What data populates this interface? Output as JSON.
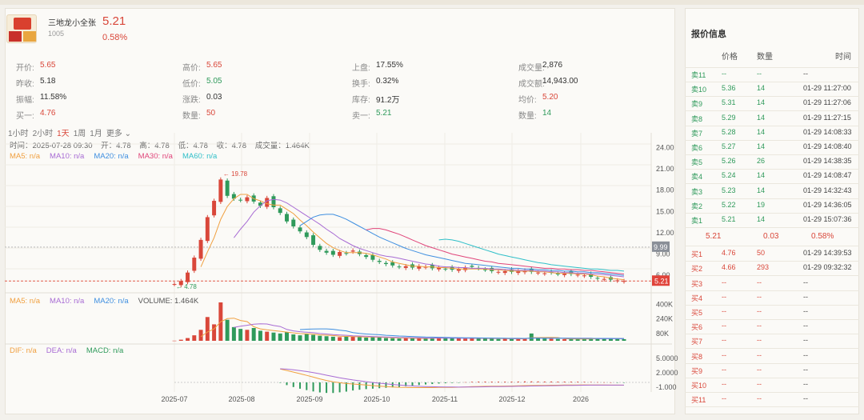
{
  "stock": {
    "name": "三地龙小全张",
    "code": "1005",
    "price": "5.21",
    "change_pct": "0.58%"
  },
  "stats": [
    {
      "label": "开价:",
      "value": "5.65",
      "color": "red"
    },
    {
      "label": "昨收:",
      "value": "5.18",
      "color": "dark"
    },
    {
      "label": "振幅:",
      "value": "11.58%",
      "color": "dark"
    },
    {
      "label": "买一:",
      "value": "4.76",
      "color": "red"
    },
    {
      "label": "高价:",
      "value": "5.65",
      "color": "red"
    },
    {
      "label": "低价:",
      "value": "5.05",
      "color": "green"
    },
    {
      "label": "涨跌:",
      "value": "0.03",
      "color": "dark"
    },
    {
      "label": "数量:",
      "value": "50",
      "color": "red"
    },
    {
      "label": "上盘:",
      "value": "17.55%",
      "color": "dark"
    },
    {
      "label": "换手:",
      "value": "0.32%",
      "color": "dark"
    },
    {
      "label": "库存:",
      "value": "91.2万",
      "color": "dark"
    },
    {
      "label": "卖一:",
      "value": "5.21",
      "color": "green"
    },
    {
      "label": "成交量:",
      "value": "2,876",
      "color": "dark"
    },
    {
      "label": "成交额:",
      "value": "14,943.00",
      "color": "dark"
    },
    {
      "label": "均价:",
      "value": "5.20",
      "color": "red"
    },
    {
      "label": "数量:",
      "value": "14",
      "color": "green"
    }
  ],
  "periods": [
    "1小时",
    "2小时",
    "1天",
    "1周",
    "1月",
    "更多 ⌄"
  ],
  "active_period": "1天",
  "kline_info": {
    "time": "时间：2025-07-28 09:30",
    "open": "开：4.78",
    "high": "高：4.78",
    "low": "低：4.78",
    "close": "收：4.78",
    "volume": "成交量：1.464K"
  },
  "ma_legend": [
    {
      "label": "MA5: n/a",
      "color": "#f0a040"
    },
    {
      "label": "MA10: n/a",
      "color": "#a86cd4"
    },
    {
      "label": "MA20: n/a",
      "color": "#3f8fe0"
    },
    {
      "label": "MA30: n/a",
      "color": "#e0457a"
    },
    {
      "label": "MA60: n/a",
      "color": "#2fbfc8"
    }
  ],
  "vol_legend": [
    {
      "label": "MA5: n/a",
      "color": "#f0a040"
    },
    {
      "label": "MA10: n/a",
      "color": "#a86cd4"
    },
    {
      "label": "MA20: n/a",
      "color": "#3f8fe0"
    },
    {
      "label": "VOLUME: 1.464K",
      "color": "#555555"
    }
  ],
  "macd_legend": [
    {
      "label": "DIF: n/a",
      "color": "#f0a040"
    },
    {
      "label": "DEA: n/a",
      "color": "#a86cd4"
    },
    {
      "label": "MACD: n/a",
      "color": "#2f9a5b"
    }
  ],
  "axes": {
    "price_ticks": [
      "24.00",
      "21.00",
      "18.00",
      "15.00",
      "12.00",
      "9.00",
      "6.00"
    ],
    "price_marker": "9.99",
    "last_price_marker": "5.21",
    "high_label": "19.78",
    "low_label": "4.78",
    "volume_ticks": [
      "400K",
      "240K",
      "80K"
    ],
    "macd_ticks": [
      "5.0000",
      "2.0000",
      "-1.000"
    ],
    "x_ticks": [
      "2025-07",
      "2025-08",
      "2025-09",
      "2025-10",
      "2025-11",
      "2025-12",
      "2026"
    ]
  },
  "chart_data": {
    "type": "candlestick",
    "note_colors": {
      "up": "#d9473a",
      "down": "#2f9a5b"
    },
    "ylim": [
      4,
      24.5
    ],
    "x_range": [
      "2025-07-28",
      "2026-01-29"
    ],
    "high_point": 19.78,
    "low_point": 4.78,
    "last": 5.21,
    "close_series": [
      4.78,
      5.2,
      6.4,
      8.5,
      11.0,
      14.2,
      16.5,
      19.5,
      17.2,
      16.8,
      16.6,
      17.0,
      16.4,
      15.8,
      16.9,
      15.6,
      14.8,
      13.6,
      12.9,
      12.2,
      11.4,
      10.3,
      9.6,
      9.2,
      8.9,
      9.3,
      9.1,
      9.5,
      9.0,
      8.6,
      8.2,
      7.9,
      7.6,
      7.4,
      7.2,
      7.3,
      7.1,
      7.3,
      7.2,
      7.0,
      7.1,
      6.9,
      6.8,
      6.9,
      7.1,
      7.2,
      7.0,
      6.8,
      6.6,
      6.5,
      6.6,
      6.5,
      6.6,
      6.7,
      6.5,
      6.4,
      6.3,
      6.4,
      6.2,
      6.3,
      6.2,
      6.1,
      6.0,
      5.8,
      5.6,
      5.5,
      5.4,
      5.3,
      5.21
    ],
    "ma5": [
      null,
      null,
      null,
      null,
      7.2,
      9.3,
      11.3,
      13.9,
      15.7,
      16.8,
      17.4,
      17.4,
      16.8,
      16.5,
      16.1,
      15.9,
      15.9,
      15.3,
      14.7,
      13.8,
      13.0,
      12.1,
      11.3,
      10.5,
      9.9,
      9.5,
      9.2,
      9.2,
      9.2,
      9.1,
      8.9,
      8.6,
      8.3,
      7.9,
      7.7,
      7.5,
      7.3,
      7.3,
      7.2,
      7.2,
      7.1,
      7.1,
      7.0,
      6.9,
      6.9,
      6.9,
      6.9,
      6.9,
      6.8,
      6.8,
      6.7,
      6.6,
      6.6,
      6.6,
      6.6,
      6.5,
      6.5,
      6.4,
      6.3,
      6.3,
      6.3,
      6.2,
      6.2,
      6.1,
      5.9,
      5.8,
      5.6,
      5.5,
      5.4
    ],
    "ma10": [
      null,
      null,
      null,
      null,
      null,
      null,
      null,
      null,
      null,
      11.3,
      12.5,
      13.6,
      14.9,
      15.8,
      16.5,
      16.7,
      16.6,
      16.2,
      15.6,
      15.0,
      14.4,
      13.8,
      13.2,
      12.5,
      11.9,
      11.2,
      10.7,
      10.2,
      9.8,
      9.5,
      9.2,
      8.9,
      8.7,
      8.6,
      8.4,
      8.2,
      8.0,
      7.8,
      7.6,
      7.5,
      7.3,
      7.2,
      7.2,
      7.1,
      7.1,
      7.0,
      7.0,
      7.0,
      6.9,
      6.9,
      6.8,
      6.8,
      6.7,
      6.7,
      6.7,
      6.6,
      6.6,
      6.5,
      6.5,
      6.4,
      6.4,
      6.3,
      6.3,
      6.2,
      6.2,
      6.1,
      6.0,
      5.9,
      5.8
    ],
    "ma20": [
      null,
      null,
      null,
      null,
      null,
      null,
      null,
      null,
      null,
      null,
      null,
      null,
      null,
      null,
      null,
      null,
      null,
      null,
      null,
      13.0,
      13.6,
      14.2,
      14.5,
      14.6,
      14.6,
      14.3,
      13.9,
      13.4,
      12.9,
      12.4,
      11.9,
      11.4,
      11.0,
      10.6,
      10.2,
      9.8,
      9.5,
      9.2,
      8.9,
      8.7,
      8.5,
      8.3,
      8.1,
      7.9,
      7.7,
      7.6,
      7.5,
      7.4,
      7.3,
      7.2,
      7.1,
      7.0,
      7.0,
      6.9,
      6.9,
      6.8,
      6.8,
      6.7,
      6.7,
      6.6,
      6.6,
      6.5,
      6.5,
      6.4,
      6.4,
      6.3,
      6.2,
      6.1,
      6.0
    ],
    "ma30": [
      null,
      null,
      null,
      null,
      null,
      null,
      null,
      null,
      null,
      null,
      null,
      null,
      null,
      null,
      null,
      null,
      null,
      null,
      null,
      null,
      null,
      null,
      null,
      null,
      null,
      null,
      null,
      null,
      null,
      12.4,
      12.6,
      12.6,
      12.4,
      12.1,
      11.8,
      11.4,
      11.0,
      10.6,
      10.2,
      9.9,
      9.6,
      9.3,
      9.0,
      8.8,
      8.6,
      8.4,
      8.2,
      8.0,
      7.9,
      7.7,
      7.6,
      7.5,
      7.4,
      7.3,
      7.2,
      7.1,
      7.0,
      7.0,
      6.9,
      6.9,
      6.8,
      6.8,
      6.7,
      6.7,
      6.6,
      6.5,
      6.4,
      6.3,
      6.2
    ],
    "ma60": [
      null,
      null,
      null,
      null,
      null,
      null,
      null,
      null,
      null,
      null,
      null,
      null,
      null,
      null,
      null,
      null,
      null,
      null,
      null,
      null,
      null,
      null,
      null,
      null,
      null,
      null,
      null,
      null,
      null,
      null,
      null,
      null,
      null,
      null,
      null,
      null,
      null,
      null,
      null,
      null,
      11.0,
      11.1,
      11.0,
      10.8,
      10.5,
      10.2,
      9.9,
      9.6,
      9.3,
      9.0,
      8.8,
      8.6,
      8.4,
      8.2,
      8.0,
      7.8,
      7.7,
      7.5,
      7.4,
      7.3,
      7.2,
      7.1,
      7.0,
      6.9,
      6.9,
      6.8,
      6.7,
      6.7,
      6.6
    ],
    "volume_k": [
      1.464,
      12,
      30,
      60,
      120,
      260,
      180,
      420,
      230,
      150,
      130,
      120,
      140,
      110,
      100,
      90,
      80,
      95,
      70,
      60,
      75,
      65,
      55,
      50,
      45,
      40,
      50,
      45,
      40,
      35,
      40,
      38,
      30,
      28,
      25,
      30,
      28,
      26,
      24,
      30,
      40,
      35,
      28,
      26,
      24,
      30,
      28,
      25,
      22,
      20,
      24,
      22,
      20,
      25,
      80,
      30,
      25,
      22,
      20,
      18,
      22,
      20,
      18,
      25,
      30,
      28,
      24,
      20,
      18
    ]
  },
  "quote_panel": {
    "title": "报价信息",
    "headers": [
      "价格",
      "数量",
      "时间"
    ],
    "sells": [
      {
        "label": "卖11",
        "price": "--",
        "qty": "--",
        "time": "--"
      },
      {
        "label": "卖10",
        "price": "5.36",
        "qty": "14",
        "time": "01-29 11:27:00"
      },
      {
        "label": "卖9",
        "price": "5.31",
        "qty": "14",
        "time": "01-29 11:27:06"
      },
      {
        "label": "卖8",
        "price": "5.29",
        "qty": "14",
        "time": "01-29 11:27:15"
      },
      {
        "label": "卖7",
        "price": "5.28",
        "qty": "14",
        "time": "01-29 14:08:33"
      },
      {
        "label": "卖6",
        "price": "5.27",
        "qty": "14",
        "time": "01-29 14:08:40"
      },
      {
        "label": "卖5",
        "price": "5.26",
        "qty": "26",
        "time": "01-29 14:38:35"
      },
      {
        "label": "卖4",
        "price": "5.24",
        "qty": "14",
        "time": "01-29 14:08:47"
      },
      {
        "label": "卖3",
        "price": "5.23",
        "qty": "14",
        "time": "01-29 14:32:43"
      },
      {
        "label": "卖2",
        "price": "5.22",
        "qty": "19",
        "time": "01-29 14:36:05"
      },
      {
        "label": "卖1",
        "price": "5.21",
        "qty": "14",
        "time": "01-29 15:07:36"
      }
    ],
    "mid": {
      "price": "5.21",
      "change": "0.03",
      "pct": "0.58%"
    },
    "buys": [
      {
        "label": "买1",
        "price": "4.76",
        "qty": "50",
        "time": "01-29 14:39:53"
      },
      {
        "label": "买2",
        "price": "4.66",
        "qty": "293",
        "time": "01-29 09:32:32"
      },
      {
        "label": "买3",
        "price": "--",
        "qty": "--",
        "time": "--"
      },
      {
        "label": "买4",
        "price": "--",
        "qty": "--",
        "time": "--"
      },
      {
        "label": "买5",
        "price": "--",
        "qty": "--",
        "time": "--"
      },
      {
        "label": "买6",
        "price": "--",
        "qty": "--",
        "time": "--"
      },
      {
        "label": "买7",
        "price": "--",
        "qty": "--",
        "time": "--"
      },
      {
        "label": "买8",
        "price": "--",
        "qty": "--",
        "time": "--"
      },
      {
        "label": "买9",
        "price": "--",
        "qty": "--",
        "time": "--"
      },
      {
        "label": "买10",
        "price": "--",
        "qty": "--",
        "time": "--"
      },
      {
        "label": "买11",
        "price": "--",
        "qty": "--",
        "time": "--"
      }
    ]
  }
}
